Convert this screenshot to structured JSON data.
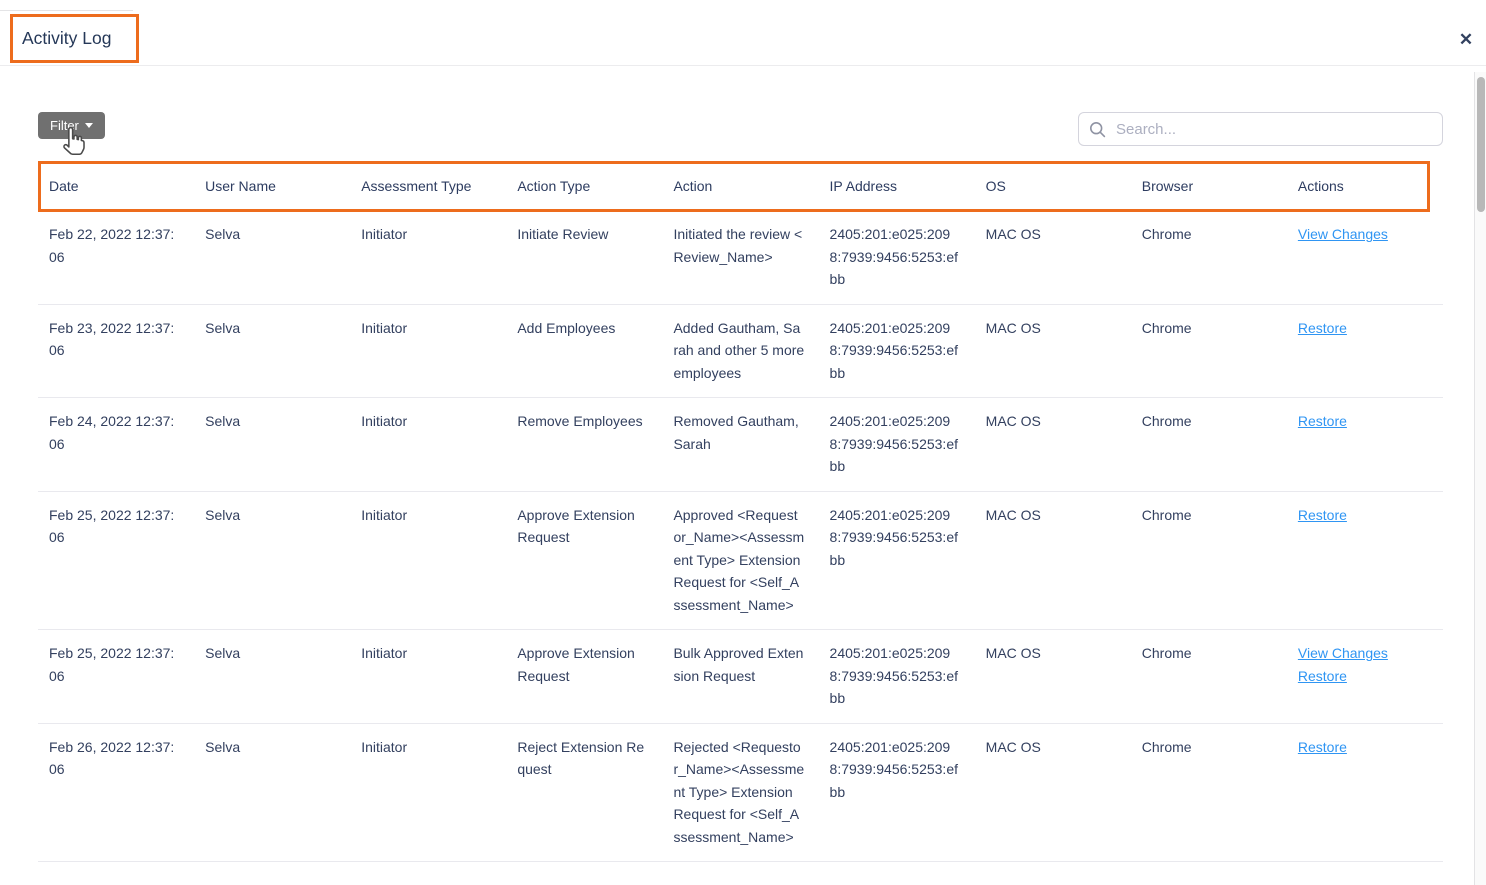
{
  "modal": {
    "title": "Activity Log",
    "close_glyph": "✕"
  },
  "toolbar": {
    "filter_label": "Filter",
    "search_placeholder": "Search..."
  },
  "colors": {
    "annotation_orange": "#ed6c1d",
    "link_blue": "#2f95f3",
    "text_navy": "#2d3c60",
    "filter_gray": "#707070"
  },
  "icons": {
    "search": "magnifier",
    "filter_caret": "caret-down",
    "cursor": "hand-pointer",
    "close": "x-mark"
  },
  "table": {
    "headers": [
      "Date",
      "User Name",
      "Assessment Type",
      "Action Type",
      "Action",
      "IP Address",
      "OS",
      "Browser",
      "Actions"
    ],
    "rows": [
      {
        "date": "Feb 22, 2022 12:37:06",
        "user": "Selva",
        "assessment_type": "Initiator",
        "action_type": "Initiate Review",
        "action": "Initiated the review <Review_Name>",
        "ip": "2405:201:e025:2098:7939:9456:5253:efbb",
        "os": "MAC OS",
        "browser": "Chrome",
        "actions": [
          "View Changes"
        ]
      },
      {
        "date": "Feb 23, 2022 12:37:06",
        "user": "Selva",
        "assessment_type": "Initiator",
        "action_type": "Add Employees",
        "action": "Added Gautham, Sarah and other 5 more employees",
        "ip": "2405:201:e025:2098:7939:9456:5253:efbb",
        "os": "MAC OS",
        "browser": "Chrome",
        "actions": [
          "Restore"
        ]
      },
      {
        "date": "Feb 24, 2022 12:37:06",
        "user": "Selva",
        "assessment_type": "Initiator",
        "action_type": "Remove Employees",
        "action": "Removed Gautham, Sarah",
        "ip": "2405:201:e025:2098:7939:9456:5253:efbb",
        "os": "MAC OS",
        "browser": "Chrome",
        "actions": [
          "Restore"
        ]
      },
      {
        "date": "Feb 25, 2022 12:37:06",
        "user": "Selva",
        "assessment_type": "Initiator",
        "action_type": "Approve Extension Request",
        "action": "Approved <Requestor_Name><Assessment Type> Extension Request for <Self_Assessment_Name>",
        "ip": "2405:201:e025:2098:7939:9456:5253:efbb",
        "os": "MAC OS",
        "browser": "Chrome",
        "actions": [
          "Restore"
        ]
      },
      {
        "date": "Feb 25, 2022 12:37:06",
        "user": "Selva",
        "assessment_type": "Initiator",
        "action_type": "Approve Extension Request",
        "action": "Bulk Approved Extension Request",
        "ip": "2405:201:e025:2098:7939:9456:5253:efbb",
        "os": "MAC OS",
        "browser": "Chrome",
        "actions": [
          "View Changes",
          "Restore"
        ]
      },
      {
        "date": "Feb 26, 2022 12:37:06",
        "user": "Selva",
        "assessment_type": "Initiator",
        "action_type": "Reject Extension Request",
        "action": "Rejected <Requestor_Name><Assessment Type> Extension Request for <Self_Assessment_Name>",
        "ip": "2405:201:e025:2098:7939:9456:5253:efbb",
        "os": "MAC OS",
        "browser": "Chrome",
        "actions": [
          "Restore"
        ]
      }
    ]
  }
}
